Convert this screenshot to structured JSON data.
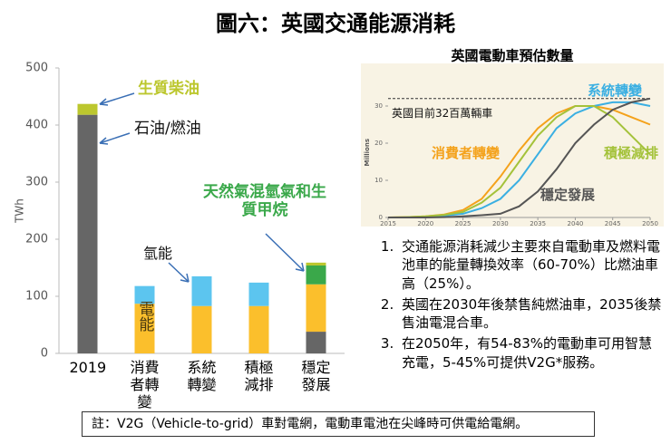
{
  "title": "圖六：英國交通能源消耗",
  "chart_data": [
    {
      "type": "bar",
      "stacked": true,
      "y_label": "TWh",
      "categories": [
        "2019",
        "消費者轉變",
        "系統轉變",
        "積極減排",
        "穩定發展"
      ],
      "series": [
        {
          "name": "石油/燃油",
          "color": "#666666",
          "values": [
            418,
            null,
            null,
            null,
            38
          ]
        },
        {
          "name": "電能",
          "color": "#fbbf2c",
          "values": [
            null,
            87,
            83,
            83,
            83
          ]
        },
        {
          "name": "氫能",
          "color": "#5cc5ef",
          "values": [
            null,
            31,
            52,
            41,
            null
          ]
        },
        {
          "name": "天然氣混氫氣和生質甲烷",
          "color": "#3aa84a",
          "values": [
            null,
            null,
            null,
            null,
            33
          ]
        },
        {
          "name": "生質柴油",
          "color": "#bcc72e",
          "values": [
            19,
            null,
            null,
            null,
            5
          ]
        }
      ],
      "ylim": [
        0,
        500
      ],
      "yticks": [
        0,
        100,
        200,
        300,
        400,
        500
      ],
      "grid": false
    },
    {
      "type": "line",
      "title": "英國電動車預估數量",
      "y_label": "Millions",
      "x": [
        2015,
        2017.5,
        2020,
        2022.5,
        2025,
        2027.5,
        2030,
        2032.5,
        2035,
        2037.5,
        2040,
        2042.5,
        2045,
        2047.5,
        2050
      ],
      "series": [
        {
          "name": "消費者轉變",
          "color": "#f4a21b",
          "values": [
            0,
            0.1,
            0.3,
            0.8,
            2,
            5,
            11,
            18,
            24,
            28,
            30,
            30,
            29,
            27,
            25
          ]
        },
        {
          "name": "系統轉變",
          "color": "#3aafe2",
          "values": [
            0,
            0,
            0.2,
            0.5,
            1,
            2.5,
            5,
            10,
            17,
            24,
            28,
            30,
            31,
            31,
            30
          ]
        },
        {
          "name": "積極減排",
          "color": "#a4c23a",
          "values": [
            0,
            0.1,
            0.3,
            0.7,
            1.5,
            4,
            8,
            15,
            22,
            27,
            30,
            30,
            27,
            22,
            17
          ]
        },
        {
          "name": "穩定發展",
          "color": "#555555",
          "values": [
            0,
            0,
            0,
            0.1,
            0.3,
            0.6,
            1,
            3,
            7,
            13,
            20,
            25,
            29,
            31,
            32
          ]
        }
      ],
      "reference": {
        "value": 32,
        "label": "英國目前32百萬輛車"
      },
      "xlim": [
        2015,
        2050
      ],
      "xticks": [
        2015,
        2020,
        2025,
        2030,
        2035,
        2040,
        2045,
        2050
      ],
      "ylim": [
        0,
        35
      ],
      "yticks": [
        0,
        10,
        20,
        30
      ],
      "grid": false
    }
  ],
  "notes": [
    "交通能源消耗減少主要來自電動車及燃料電池車的能量轉換效率（60-70%）比燃油車高（25%）。",
    "英國在2030年後禁售純燃油車，2035後禁售油電混合車。",
    "在2050年，有54-83%的電動車可用智慧充電，5-45%可提供V2G*服務。"
  ],
  "footnote": "註：V2G（Vehicle-to-grid）車對電網，電動車電池在尖峰時可供電給電網。"
}
